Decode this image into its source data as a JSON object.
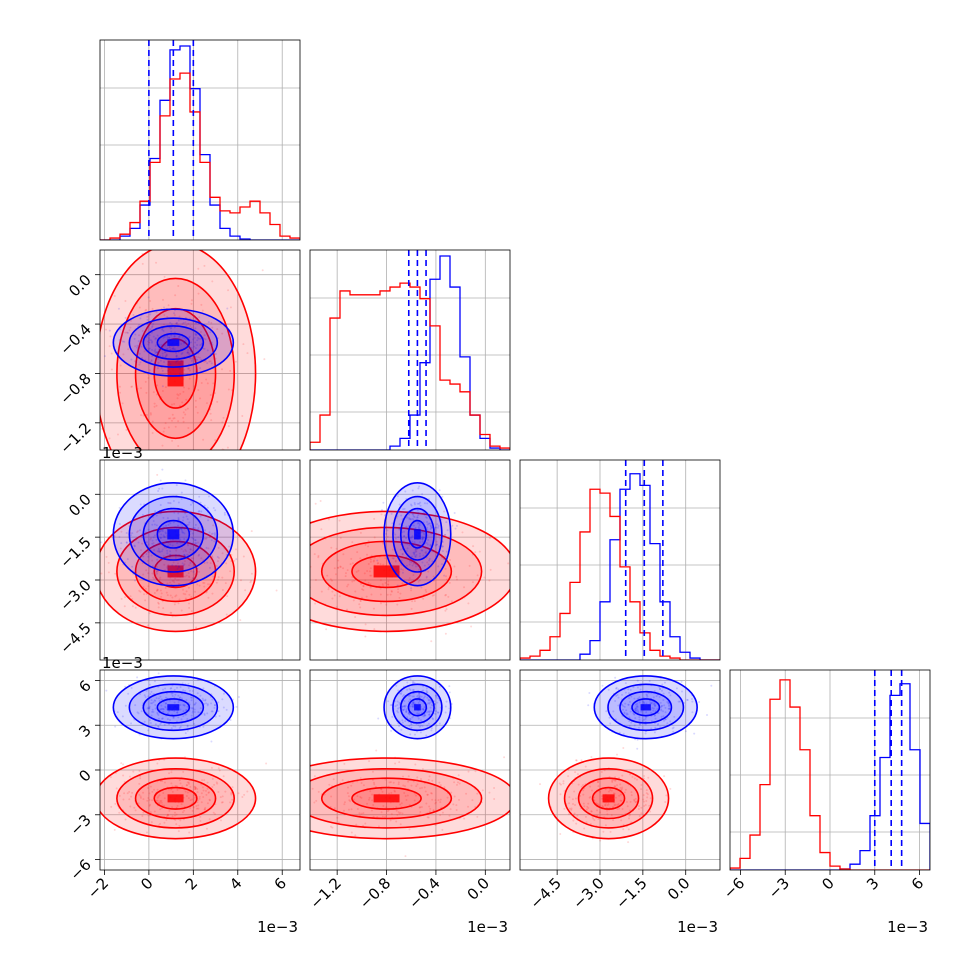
{
  "chart_data": {
    "type": "corner",
    "grid": true,
    "series": [
      {
        "name": "",
        "color": "#0000ff",
        "center": [
          0.0011,
          -0.00055,
          -0.0014,
          0.0042
        ],
        "spread": [
          0.0009,
          9e-05,
          0.0006,
          0.0007
        ]
      },
      {
        "name": "",
        "color": "#ff0000",
        "center": [
          0.0012,
          -0.0008,
          -0.0027,
          -0.0019
        ],
        "spread": [
          0.0012,
          0.00035,
          0.0007,
          0.0009
        ]
      }
    ],
    "quantile_color": "#0000ff",
    "parameters": [
      {
        "range": [
          -0.0022,
          0.0068
        ],
        "ticks": [
          "−2",
          "0",
          "2",
          "4",
          "6"
        ],
        "tick_values": [
          -0.002,
          0,
          0.002,
          0.004,
          0.006
        ],
        "exponent": "1e−3",
        "quantiles": [
          0.0,
          0.0011,
          0.002
        ],
        "hist_blue": [
          0,
          0,
          2,
          6,
          18,
          42,
          72,
          98,
          100,
          78,
          44,
          18,
          6,
          2,
          0.5,
          0,
          0,
          0,
          0,
          0
        ],
        "hist_red": [
          0,
          1,
          3,
          9,
          20,
          40,
          64,
          83,
          86,
          66,
          40,
          22,
          15,
          14,
          17,
          20,
          14,
          8,
          2,
          1
        ]
      },
      {
        "range": [
          -0.00142,
          0.0002
        ],
        "ticks": [
          "−1.2",
          "−0.8",
          "−0.4",
          "0.0"
        ],
        "tick_values": [
          -0.0012,
          -0.0008,
          -0.0004,
          0
        ],
        "exponent": "1e−3",
        "quantiles": [
          -0.00062,
          -0.00055,
          -0.00048
        ],
        "hist_blue": [
          0,
          0,
          0,
          0,
          0,
          0,
          0,
          0,
          2,
          6,
          18,
          45,
          88,
          100,
          84,
          48,
          18,
          6,
          1,
          0
        ],
        "hist_red": [
          4,
          18,
          68,
          82,
          80,
          80,
          80,
          82,
          84,
          86,
          84,
          78,
          64,
          36,
          34,
          30,
          18,
          8,
          2,
          1
        ]
      },
      {
        "range": [
          -0.0058,
          0.0012
        ],
        "ticks": [
          "−4.5",
          "−3.0",
          "−1.5",
          "0.0"
        ],
        "tick_values": [
          -0.0045,
          -0.003,
          -0.0015,
          0
        ],
        "exponent": "1e−3",
        "quantiles": [
          -0.0021,
          -0.00145,
          -0.0008
        ],
        "hist_blue": [
          0,
          0,
          0,
          0,
          0,
          0,
          3,
          10,
          30,
          62,
          88,
          96,
          90,
          60,
          30,
          12,
          4,
          1,
          0,
          0
        ],
        "hist_red": [
          1,
          2,
          5,
          12,
          24,
          40,
          66,
          88,
          86,
          74,
          48,
          30,
          14,
          5,
          2,
          1,
          0,
          0,
          0,
          0
        ]
      },
      {
        "range": [
          -0.0067,
          0.0067
        ],
        "ticks": [
          "−6",
          "−3",
          "0",
          "3",
          "6"
        ],
        "tick_values": [
          -0.006,
          -0.003,
          0,
          0.003,
          0.006
        ],
        "exponent": "1e−3",
        "quantiles": [
          0.003,
          0.0041,
          0.0048
        ],
        "hist_blue": [
          0,
          0,
          0,
          0,
          0,
          0,
          0,
          0,
          0,
          0,
          0,
          0.5,
          3,
          10,
          28,
          58,
          90,
          96,
          62,
          24
        ],
        "hist_red": [
          1,
          6,
          18,
          44,
          88,
          98,
          84,
          62,
          28,
          9,
          2,
          0.5,
          0,
          0,
          0,
          0,
          0,
          0,
          0,
          0
        ]
      }
    ]
  }
}
